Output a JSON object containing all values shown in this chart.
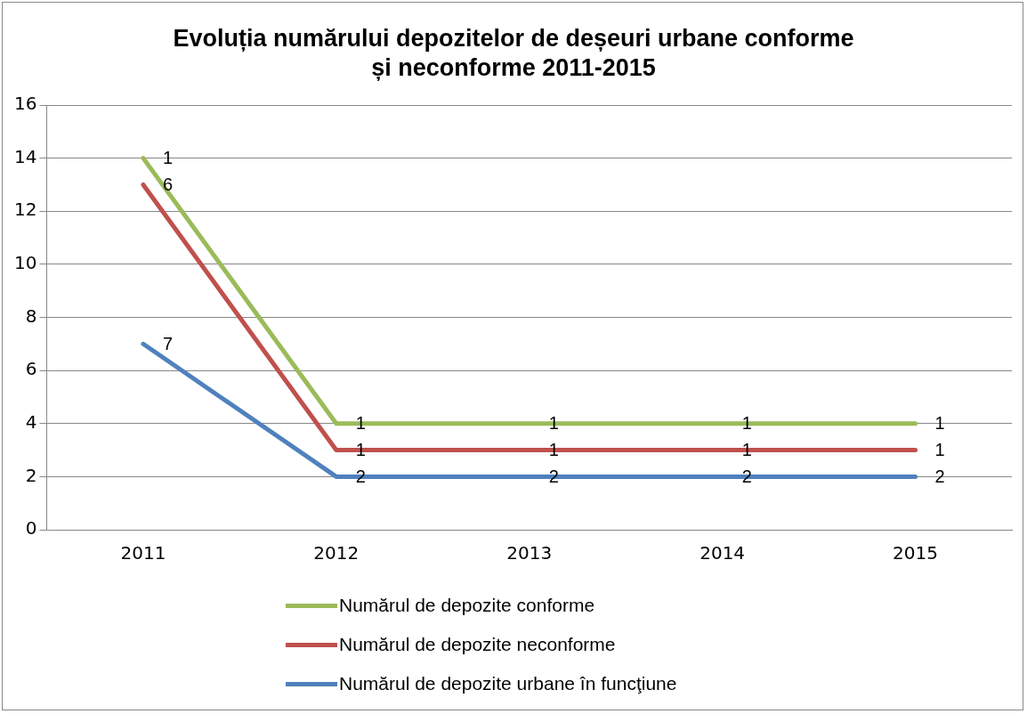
{
  "chart_data": {
    "type": "line",
    "title": "Evoluția numărului depozitelor de deșeuri urbane conforme\nși neconforme 2011-2015",
    "categories": [
      "2011",
      "2012",
      "2013",
      "2014",
      "2015"
    ],
    "series": [
      {
        "name": "Numărul de depozite conforme",
        "color": "#9bbb59",
        "values": [
          14,
          4,
          4,
          4,
          4
        ]
      },
      {
        "name": "Numărul de depozite neconforme",
        "color": "#c0504d",
        "values": [
          13,
          3,
          3,
          3,
          3
        ]
      },
      {
        "name": "Numărul de depozite urbane în funcţiune",
        "color": "#4f81bd",
        "values": [
          7,
          2,
          2,
          2,
          2
        ]
      }
    ],
    "annotations": [
      {
        "text": "1",
        "x": "2011",
        "y": 14
      },
      {
        "text": "1",
        "x": "2012",
        "y": 4
      },
      {
        "text": "1",
        "x": "2013",
        "y": 4
      },
      {
        "text": "1",
        "x": "2014",
        "y": 4
      },
      {
        "text": "1",
        "x": "2015",
        "y": 4
      },
      {
        "text": "6",
        "x": "2011",
        "y": 13
      },
      {
        "text": "1",
        "x": "2012",
        "y": 3
      },
      {
        "text": "1",
        "x": "2013",
        "y": 3
      },
      {
        "text": "1",
        "x": "2014",
        "y": 3
      },
      {
        "text": "1",
        "x": "2015",
        "y": 3
      },
      {
        "text": "7",
        "x": "2011",
        "y": 7
      },
      {
        "text": "2",
        "x": "2012",
        "y": 2
      },
      {
        "text": "2",
        "x": "2013",
        "y": 2
      },
      {
        "text": "2",
        "x": "2014",
        "y": 2
      },
      {
        "text": "2",
        "x": "2015",
        "y": 2
      }
    ],
    "ylim": [
      0,
      16
    ],
    "yticks": [
      0,
      2,
      4,
      6,
      8,
      10,
      12,
      14,
      16
    ],
    "grid": "y",
    "legend": "bottom",
    "marker": "none",
    "line_style": "solid"
  }
}
